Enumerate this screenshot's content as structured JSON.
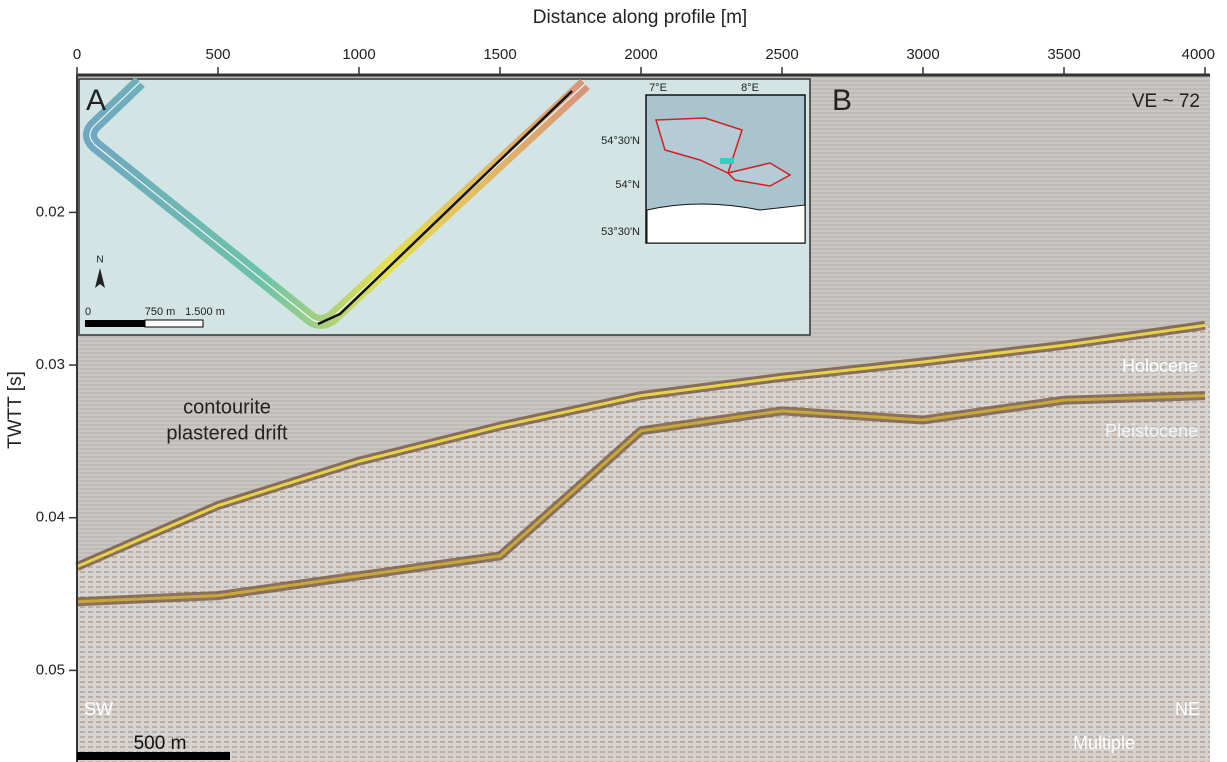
{
  "chart_data": {
    "type": "seismic-profile",
    "x_label": "Distance along profile [m]",
    "y_label": "TWTT [s]",
    "xlim": [
      0,
      4000
    ],
    "xticks": [
      0,
      500,
      1000,
      1500,
      2000,
      2500,
      3000,
      3500,
      4000
    ],
    "ylim": [
      0.011,
      0.056
    ],
    "yticks": [
      0.02,
      0.03,
      0.04,
      0.05
    ],
    "y_inverted": true,
    "seafloor": {
      "color": "#e8d24a",
      "x": [
        0,
        500,
        1000,
        1500,
        2000,
        2500,
        3000,
        3500,
        4000
      ],
      "values": [
        0.0432,
        0.0392,
        0.0363,
        0.034,
        0.032,
        0.0308,
        0.0298,
        0.0287,
        0.0274
      ]
    },
    "base_reflector": {
      "color": "#c9a83a",
      "x": [
        0,
        500,
        1000,
        1500,
        1800,
        2000,
        2500,
        3000,
        3500,
        4000
      ],
      "values": [
        0.0455,
        0.0451,
        0.0438,
        0.0425,
        0.0376,
        0.0343,
        0.033,
        0.0336,
        0.0323,
        0.032
      ]
    },
    "annotations": [
      "B",
      "VE ~ 72",
      "contourite",
      "plastered drift",
      "Holocene",
      "Pleistocene",
      "SW",
      "NE",
      "Multiple",
      "500 m"
    ],
    "inset": {
      "panel_label": "A",
      "north": "N",
      "scale_labels": [
        "0",
        "750 m",
        "1.500 m"
      ],
      "map_labels": [
        "7°E",
        "8°E",
        "54°30'N",
        "54°N",
        "53°30'N"
      ]
    }
  }
}
